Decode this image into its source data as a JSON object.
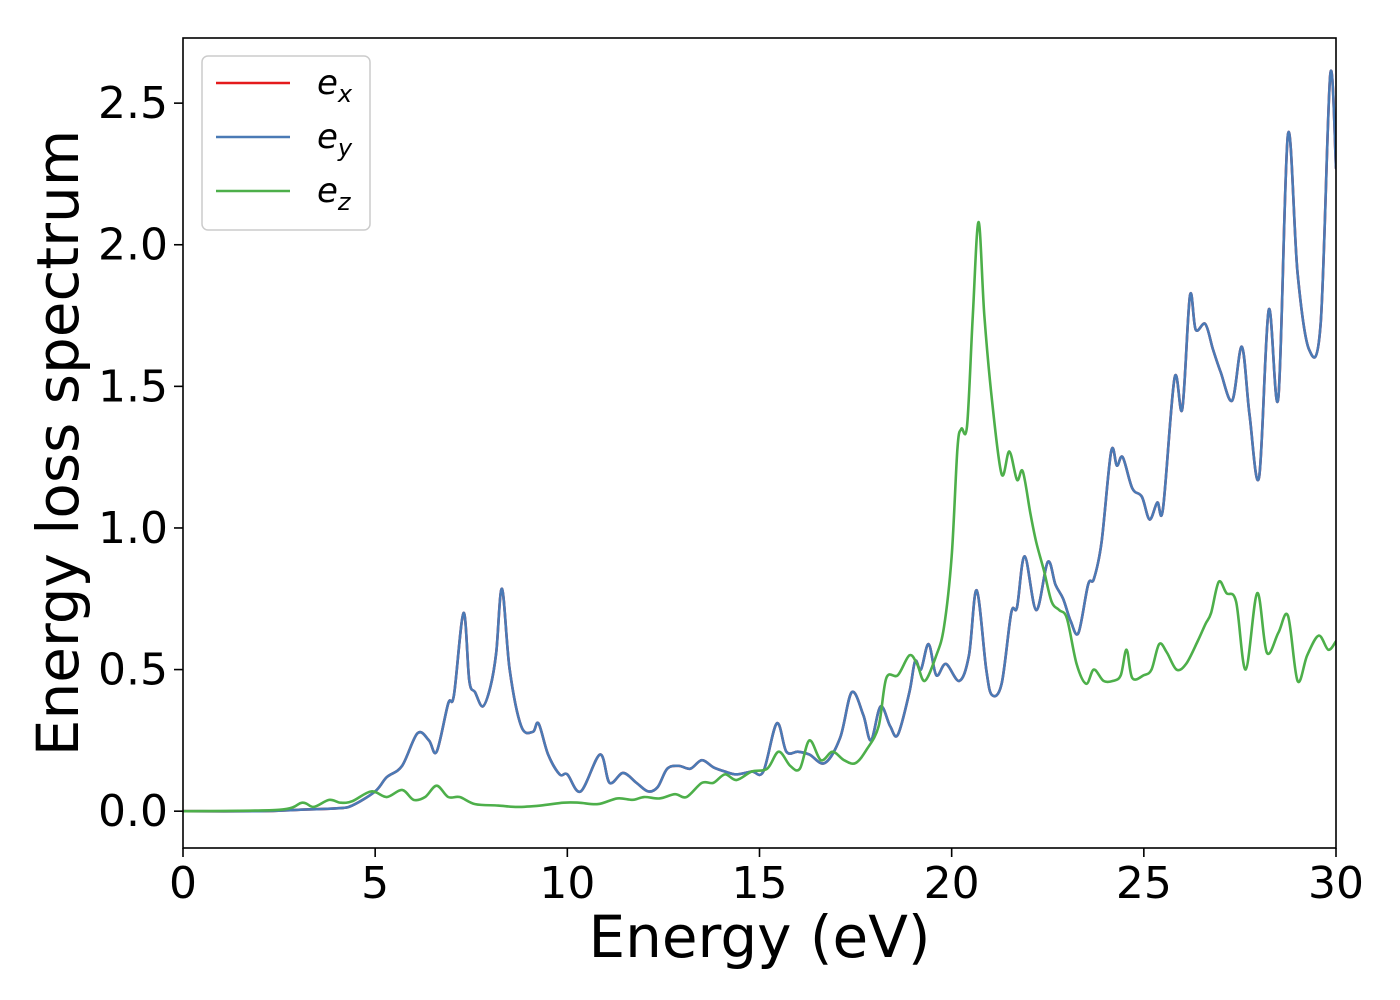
{
  "chart_data": {
    "type": "line",
    "title": "",
    "xlabel": "Energy (eV)",
    "ylabel": "Energy loss spectrum",
    "xlim": [
      0,
      30
    ],
    "ylim": [
      -0.13,
      2.73
    ],
    "xticks": [
      0,
      5,
      10,
      15,
      20,
      25,
      30
    ],
    "xtick_labels": [
      "0",
      "5",
      "10",
      "15",
      "20",
      "25",
      "30"
    ],
    "yticks": [
      0.0,
      0.5,
      1.0,
      1.5,
      2.0,
      2.5
    ],
    "ytick_labels": [
      "0.0",
      "0.5",
      "1.0",
      "1.5",
      "2.0",
      "2.5"
    ],
    "grid": false,
    "legend_position": "top-left",
    "series": [
      {
        "name": "e_x",
        "legend_base": "e",
        "legend_sub": "x",
        "color": "#e41a1c",
        "x": [
          0,
          2,
          3,
          4,
          4.4,
          5.0,
          5.3,
          5.7,
          6.1,
          6.4,
          6.6,
          6.9,
          7.05,
          7.3,
          7.45,
          7.6,
          7.8,
          8.0,
          8.15,
          8.3,
          8.5,
          8.8,
          9.1,
          9.25,
          9.5,
          9.8,
          10.0,
          10.35,
          10.85,
          11.1,
          11.45,
          11.8,
          12.1,
          12.35,
          12.6,
          12.9,
          13.2,
          13.5,
          13.8,
          14.1,
          14.4,
          14.8,
          15.1,
          15.45,
          15.7,
          16.0,
          16.3,
          16.7,
          17.1,
          17.4,
          17.7,
          17.9,
          18.15,
          18.4,
          18.6,
          18.9,
          19.05,
          19.2,
          19.4,
          19.6,
          19.85,
          20.2,
          20.45,
          20.65,
          20.9,
          21.05,
          21.3,
          21.55,
          21.7,
          21.9,
          22.2,
          22.5,
          22.7,
          22.9,
          23.1,
          23.3,
          23.55,
          23.7,
          23.9,
          24.15,
          24.3,
          24.45,
          24.7,
          24.95,
          25.15,
          25.35,
          25.5,
          25.8,
          26.0,
          26.2,
          26.35,
          26.6,
          26.8,
          27.0,
          27.3,
          27.55,
          27.75,
          28.0,
          28.25,
          28.5,
          28.75,
          29.0,
          29.3,
          29.6,
          29.85,
          30.0
        ],
        "y": [
          0.0,
          0.0,
          0.005,
          0.01,
          0.02,
          0.07,
          0.12,
          0.16,
          0.275,
          0.25,
          0.21,
          0.38,
          0.41,
          0.7,
          0.46,
          0.42,
          0.37,
          0.44,
          0.56,
          0.785,
          0.5,
          0.3,
          0.28,
          0.31,
          0.2,
          0.13,
          0.13,
          0.07,
          0.2,
          0.1,
          0.135,
          0.1,
          0.07,
          0.085,
          0.15,
          0.16,
          0.15,
          0.18,
          0.155,
          0.14,
          0.13,
          0.14,
          0.14,
          0.31,
          0.21,
          0.21,
          0.2,
          0.17,
          0.26,
          0.42,
          0.34,
          0.25,
          0.37,
          0.3,
          0.27,
          0.42,
          0.53,
          0.5,
          0.59,
          0.48,
          0.52,
          0.46,
          0.55,
          0.78,
          0.5,
          0.41,
          0.45,
          0.7,
          0.72,
          0.9,
          0.71,
          0.88,
          0.8,
          0.75,
          0.67,
          0.63,
          0.8,
          0.82,
          0.95,
          1.27,
          1.22,
          1.25,
          1.14,
          1.11,
          1.03,
          1.09,
          1.07,
          1.53,
          1.42,
          1.82,
          1.7,
          1.72,
          1.63,
          1.55,
          1.45,
          1.64,
          1.4,
          1.18,
          1.77,
          1.46,
          2.39,
          1.9,
          1.63,
          1.72,
          2.6,
          2.27
        ]
      },
      {
        "name": "e_y",
        "legend_base": "e",
        "legend_sub": "y",
        "color": "#4a7ab5",
        "x": [
          0,
          2,
          3,
          4,
          4.4,
          5.0,
          5.3,
          5.7,
          6.1,
          6.4,
          6.6,
          6.9,
          7.05,
          7.3,
          7.45,
          7.6,
          7.8,
          8.0,
          8.15,
          8.3,
          8.5,
          8.8,
          9.1,
          9.25,
          9.5,
          9.8,
          10.0,
          10.35,
          10.85,
          11.1,
          11.45,
          11.8,
          12.1,
          12.35,
          12.6,
          12.9,
          13.2,
          13.5,
          13.8,
          14.1,
          14.4,
          14.8,
          15.1,
          15.45,
          15.7,
          16.0,
          16.3,
          16.7,
          17.1,
          17.4,
          17.7,
          17.9,
          18.15,
          18.4,
          18.6,
          18.9,
          19.05,
          19.2,
          19.4,
          19.6,
          19.85,
          20.2,
          20.45,
          20.65,
          20.9,
          21.05,
          21.3,
          21.55,
          21.7,
          21.9,
          22.2,
          22.5,
          22.7,
          22.9,
          23.1,
          23.3,
          23.55,
          23.7,
          23.9,
          24.15,
          24.3,
          24.45,
          24.7,
          24.95,
          25.15,
          25.35,
          25.5,
          25.8,
          26.0,
          26.2,
          26.35,
          26.6,
          26.8,
          27.0,
          27.3,
          27.55,
          27.75,
          28.0,
          28.25,
          28.5,
          28.75,
          29.0,
          29.3,
          29.6,
          29.85,
          30.0
        ],
        "y": [
          0.0,
          0.0,
          0.005,
          0.01,
          0.02,
          0.07,
          0.12,
          0.16,
          0.275,
          0.25,
          0.21,
          0.38,
          0.41,
          0.7,
          0.46,
          0.42,
          0.37,
          0.44,
          0.56,
          0.785,
          0.5,
          0.3,
          0.28,
          0.31,
          0.2,
          0.13,
          0.13,
          0.07,
          0.2,
          0.1,
          0.135,
          0.1,
          0.07,
          0.085,
          0.15,
          0.16,
          0.15,
          0.18,
          0.155,
          0.14,
          0.13,
          0.14,
          0.14,
          0.31,
          0.21,
          0.21,
          0.2,
          0.17,
          0.26,
          0.42,
          0.34,
          0.25,
          0.37,
          0.3,
          0.27,
          0.42,
          0.53,
          0.5,
          0.59,
          0.48,
          0.52,
          0.46,
          0.55,
          0.78,
          0.5,
          0.41,
          0.45,
          0.7,
          0.72,
          0.9,
          0.71,
          0.88,
          0.8,
          0.75,
          0.67,
          0.63,
          0.8,
          0.82,
          0.95,
          1.27,
          1.22,
          1.25,
          1.14,
          1.11,
          1.03,
          1.09,
          1.07,
          1.53,
          1.42,
          1.82,
          1.7,
          1.72,
          1.63,
          1.55,
          1.45,
          1.64,
          1.4,
          1.18,
          1.77,
          1.46,
          2.39,
          1.9,
          1.63,
          1.72,
          2.6,
          2.27
        ]
      },
      {
        "name": "e_z",
        "legend_base": "e",
        "legend_sub": "z",
        "color": "#4daf4a",
        "x": [
          0,
          2.5,
          3.1,
          3.4,
          3.8,
          4.1,
          4.4,
          4.9,
          5.3,
          5.7,
          6.0,
          6.3,
          6.6,
          6.9,
          7.2,
          7.6,
          8.2,
          8.7,
          9.3,
          9.9,
          10.3,
          10.8,
          11.3,
          11.7,
          12.0,
          12.4,
          12.8,
          13.1,
          13.5,
          13.8,
          14.1,
          14.4,
          14.8,
          15.2,
          15.5,
          15.8,
          16.05,
          16.3,
          16.6,
          16.9,
          17.2,
          17.5,
          17.8,
          18.1,
          18.3,
          18.6,
          18.9,
          19.1,
          19.3,
          19.6,
          19.8,
          20.0,
          20.15,
          20.25,
          20.4,
          20.55,
          20.7,
          20.85,
          21.05,
          21.3,
          21.5,
          21.7,
          21.85,
          22.05,
          22.2,
          22.4,
          22.6,
          22.8,
          23.0,
          23.25,
          23.5,
          23.7,
          23.95,
          24.2,
          24.4,
          24.55,
          24.7,
          25.0,
          25.2,
          25.4,
          25.6,
          25.85,
          26.1,
          26.4,
          26.6,
          26.75,
          26.95,
          27.15,
          27.4,
          27.65,
          27.95,
          28.2,
          28.5,
          28.75,
          29.0,
          29.25,
          29.55,
          29.8,
          30.0
        ],
        "y": [
          0.0,
          0.005,
          0.03,
          0.015,
          0.04,
          0.03,
          0.035,
          0.07,
          0.05,
          0.075,
          0.04,
          0.05,
          0.09,
          0.05,
          0.05,
          0.025,
          0.02,
          0.015,
          0.02,
          0.03,
          0.03,
          0.025,
          0.045,
          0.04,
          0.05,
          0.045,
          0.06,
          0.05,
          0.1,
          0.1,
          0.13,
          0.11,
          0.14,
          0.15,
          0.21,
          0.16,
          0.15,
          0.25,
          0.18,
          0.21,
          0.18,
          0.17,
          0.22,
          0.3,
          0.47,
          0.48,
          0.55,
          0.52,
          0.46,
          0.55,
          0.65,
          0.9,
          1.28,
          1.35,
          1.36,
          1.75,
          2.08,
          1.75,
          1.45,
          1.19,
          1.27,
          1.17,
          1.2,
          1.05,
          0.95,
          0.85,
          0.74,
          0.71,
          0.68,
          0.52,
          0.45,
          0.5,
          0.46,
          0.46,
          0.48,
          0.57,
          0.47,
          0.48,
          0.5,
          0.59,
          0.56,
          0.5,
          0.52,
          0.6,
          0.66,
          0.7,
          0.81,
          0.77,
          0.74,
          0.5,
          0.77,
          0.56,
          0.63,
          0.69,
          0.46,
          0.55,
          0.62,
          0.57,
          0.6
        ]
      }
    ]
  }
}
